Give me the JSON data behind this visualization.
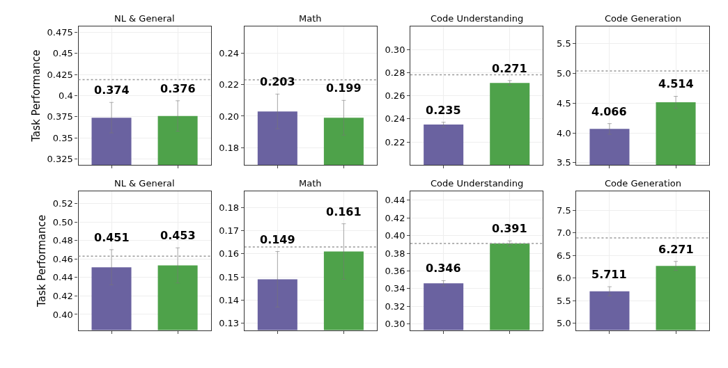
{
  "chart_data": [
    {
      "type": "bar",
      "title": "NL & General",
      "ylabel": "Task Performance",
      "categories": [
        null,
        null
      ],
      "values": [
        0.374,
        0.376
      ],
      "colors": [
        "#6a62a0",
        "#4ea24a"
      ],
      "errors": [
        0.018,
        0.018
      ],
      "data_labels": true,
      "ylim": [
        0.318,
        0.482
      ],
      "yticks": [
        0.325,
        0.35,
        0.375,
        0.4,
        0.425,
        0.45,
        0.475
      ],
      "ref_lines": [
        {
          "axis": "y",
          "value": 0.419,
          "color": "#999999",
          "line_style": "dotted"
        }
      ],
      "grid": true
    },
    {
      "type": "bar",
      "title": "Math",
      "categories": [
        null,
        null
      ],
      "values": [
        0.203,
        0.199
      ],
      "colors": [
        "#6a62a0",
        "#4ea24a"
      ],
      "errors": [
        0.011,
        0.011
      ],
      "data_labels": true,
      "ylim": [
        0.169,
        0.257
      ],
      "yticks": [
        0.18,
        {
          "value": 0.2,
          "label": "0.20"
        },
        0.22,
        0.24
      ],
      "ref_lines": [
        {
          "axis": "y",
          "value": 0.223,
          "color": "#999999",
          "line_style": "dotted"
        }
      ],
      "grid": true
    },
    {
      "type": "bar",
      "title": "Code Understanding",
      "categories": [
        null,
        null
      ],
      "values": [
        0.235,
        0.271
      ],
      "colors": [
        "#6a62a0",
        "#4ea24a"
      ],
      "errors": [
        0.002,
        0.002
      ],
      "data_labels": true,
      "ylim": [
        0.2,
        0.32
      ],
      "yticks": [
        0.22,
        0.24,
        0.26,
        0.28,
        {
          "value": 0.3,
          "label": "0.30"
        }
      ],
      "ref_lines": [
        {
          "axis": "y",
          "value": 0.278,
          "color": "#999999",
          "line_style": "dotted"
        }
      ],
      "grid": true
    },
    {
      "type": "bar",
      "title": "Code Generation",
      "categories": [
        null,
        null
      ],
      "values": [
        4.066,
        4.514
      ],
      "colors": [
        "#6a62a0",
        "#4ea24a"
      ],
      "errors": [
        0.09,
        0.1
      ],
      "data_labels": true,
      "ylim": [
        3.46,
        5.79
      ],
      "yticks": [
        3.5,
        {
          "value": 4,
          "label": "4.0"
        },
        4.5,
        {
          "value": 5,
          "label": "5.0"
        },
        5.5
      ],
      "ref_lines": [
        {
          "axis": "y",
          "value": 5.04,
          "color": "#999999",
          "line_style": "dotted"
        }
      ],
      "grid": true
    },
    {
      "type": "bar",
      "title": "NL & General",
      "ylabel": "Task Performance",
      "categories": [
        null,
        null
      ],
      "values": [
        0.451,
        0.453
      ],
      "colors": [
        "#6a62a0",
        "#4ea24a"
      ],
      "errors": [
        0.019,
        0.019
      ],
      "data_labels": true,
      "ylim": [
        0.383,
        0.533
      ],
      "yticks": [
        {
          "value": 0.4,
          "label": "0.40"
        },
        0.42,
        0.44,
        0.46,
        0.48,
        {
          "value": 0.5,
          "label": "0.50"
        },
        0.52
      ],
      "ref_lines": [
        {
          "axis": "y",
          "value": 0.463,
          "color": "#999999",
          "line_style": "dotted"
        }
      ],
      "grid": true
    },
    {
      "type": "bar",
      "title": "Math",
      "categories": [
        null,
        null
      ],
      "values": [
        0.149,
        0.161
      ],
      "colors": [
        "#6a62a0",
        "#4ea24a"
      ],
      "errors": [
        0.012,
        0.012
      ],
      "value_labels": [
        "0.149",
        "0.161"
      ],
      "ylim": [
        0.127,
        0.187
      ],
      "yticks": [
        0.13,
        0.14,
        0.15,
        0.16,
        0.17,
        0.18
      ],
      "ref_lines": [
        {
          "axis": "y",
          "value": 0.163,
          "color": "#999999",
          "line_style": "dotted"
        }
      ],
      "grid": true
    },
    {
      "type": "bar",
      "title": "Code Understanding",
      "categories": [
        null,
        null
      ],
      "values": [
        0.346,
        0.391
      ],
      "colors": [
        "#6a62a0",
        "#4ea24a"
      ],
      "errors": [
        0.003,
        0.003
      ],
      "data_labels": true,
      "ylim": [
        0.293,
        0.45
      ],
      "yticks": [
        {
          "value": 0.3,
          "label": "0.30"
        },
        0.32,
        0.34,
        0.36,
        0.38,
        {
          "value": 0.4,
          "label": "0.40"
        },
        0.42,
        0.44
      ],
      "ref_lines": [
        {
          "axis": "y",
          "value": 0.391,
          "color": "#999999",
          "line_style": "dotted"
        }
      ],
      "grid": true
    },
    {
      "type": "bar",
      "title": "Code Generation",
      "categories": [
        null,
        null
      ],
      "values": [
        5.711,
        6.271
      ],
      "colors": [
        "#6a62a0",
        "#4ea24a"
      ],
      "errors": [
        0.1,
        0.1
      ],
      "data_labels": true,
      "ylim": [
        4.85,
        7.92
      ],
      "yticks": [
        {
          "value": 5,
          "label": "5.0"
        },
        5.5,
        {
          "value": 6,
          "label": "6.0"
        },
        6.5,
        {
          "value": 7,
          "label": "7.0"
        },
        7.5
      ],
      "ref_lines": [
        {
          "axis": "y",
          "value": 6.89,
          "color": "#999999",
          "line_style": "dotted"
        }
      ],
      "grid": true
    }
  ]
}
